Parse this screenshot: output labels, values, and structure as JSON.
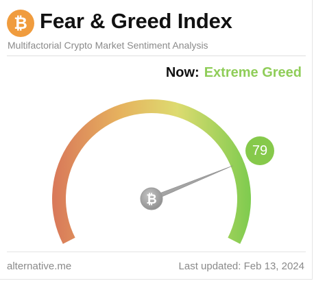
{
  "header": {
    "logo_icon": "bitcoin-icon",
    "title": "Fear & Greed Index",
    "subtitle": "Multifactorial Crypto Market Sentiment Analysis"
  },
  "status": {
    "now_label": "Now:",
    "now_value": "Extreme Greed",
    "now_color": "#8fcd58"
  },
  "gauge": {
    "value": 79,
    "min": 0,
    "max": 100,
    "badge_color": "#86c94b",
    "hub_icon": "bitcoin-icon",
    "color_stops": [
      "#d97a5a",
      "#e6b25e",
      "#dddb70",
      "#7ccb4e"
    ]
  },
  "footer": {
    "source": "alternative.me",
    "last_updated": "Last updated: Feb 13, 2024"
  }
}
